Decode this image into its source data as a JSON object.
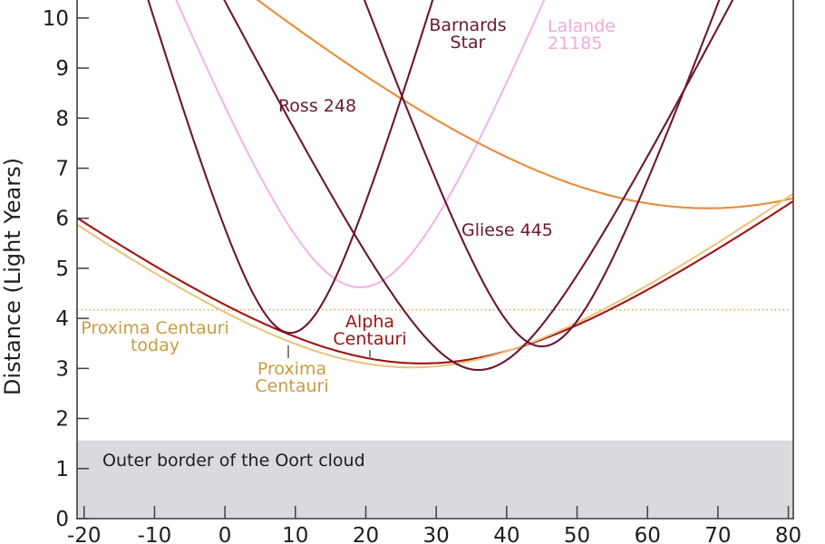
{
  "chart_data": {
    "type": "line",
    "title": "",
    "xlabel": "",
    "ylabel": "Distance (Light Years)",
    "x_ticks": [
      -20,
      -10,
      0,
      10,
      20,
      30,
      40,
      50,
      60,
      70,
      80
    ],
    "y_ticks": [
      0,
      1,
      2,
      3,
      4,
      5,
      6,
      7,
      8,
      9,
      10
    ],
    "xlim": [
      -21,
      80.7
    ],
    "ylim": [
      0,
      10.36
    ],
    "grid": false,
    "legend": "none (curves labeled by inline annotations)",
    "series": [
      {
        "id": "lalande-21185",
        "label": "Lalande 21185",
        "color": "#f3b5e5",
        "t_closest_kyr": 19.2,
        "d_min_ly": 4.62,
        "speed_ly_per_kyr": 0.355
      },
      {
        "id": "orange-curve",
        "label": "",
        "color": "#e78c3a",
        "t_closest_kyr": 68.5,
        "d_min_ly": 6.2,
        "speed_ly_per_kyr": 0.13
      },
      {
        "id": "alpha-centauri",
        "label": "Alpha Centauri",
        "color": "#a01414",
        "t_closest_kyr": 28.0,
        "d_min_ly": 3.1,
        "speed_ly_per_kyr": 0.105
      },
      {
        "id": "proxima-centauri",
        "label": "Proxima Centauri",
        "color": "#e9c57f",
        "t_closest_kyr": 26.5,
        "d_min_ly": 3.02,
        "speed_ly_per_kyr": 0.106
      },
      {
        "id": "barnards-star",
        "label": "Barnards Star",
        "color": "#6b1733",
        "t_closest_kyr": 9.3,
        "d_min_ly": 3.71,
        "speed_ly_per_kyr": 0.479
      },
      {
        "id": "ross-248",
        "label": "Ross 248",
        "color": "#6b1733",
        "t_closest_kyr": 36.0,
        "d_min_ly": 2.97,
        "speed_ly_per_kyr": 0.275
      },
      {
        "id": "gliese-445",
        "label": "Gliese 445",
        "color": "#6b1733",
        "t_closest_kyr": 45.0,
        "d_min_ly": 3.44,
        "speed_ly_per_kyr": 0.388
      }
    ],
    "reference_line": {
      "label": "Proxima Centauri today",
      "distance_ly": 4.17,
      "color": "#d6ab52",
      "style": "dotted"
    },
    "band": {
      "label": "Outer border of the Oort cloud",
      "from_ly": 0,
      "to_ly": 1.56,
      "fill": "#dbd9de"
    }
  },
  "annotations": {
    "barnards": {
      "lines": [
        "Barnards",
        "Star"
      ],
      "color": "#6b1733"
    },
    "lalande": {
      "lines": [
        "Lalande",
        "21185"
      ],
      "color": "#efa9dc"
    },
    "ross248": {
      "lines": [
        "Ross 248"
      ],
      "color": "#6b1733"
    },
    "gliese445": {
      "lines": [
        "Gliese 445"
      ],
      "color": "#6b1733"
    },
    "alpha": {
      "lines": [
        "Alpha",
        "Centauri"
      ],
      "color": "#a01414"
    },
    "proxima": {
      "lines": [
        "Proxima",
        "Centauri"
      ],
      "color": "#c89c42"
    },
    "proxima_today": {
      "lines": [
        "Proxima Centauri",
        "today"
      ],
      "color": "#c89c42"
    },
    "oort": {
      "lines": [
        "Outer border of the Oort cloud"
      ],
      "color": "#1d1d1d"
    }
  }
}
